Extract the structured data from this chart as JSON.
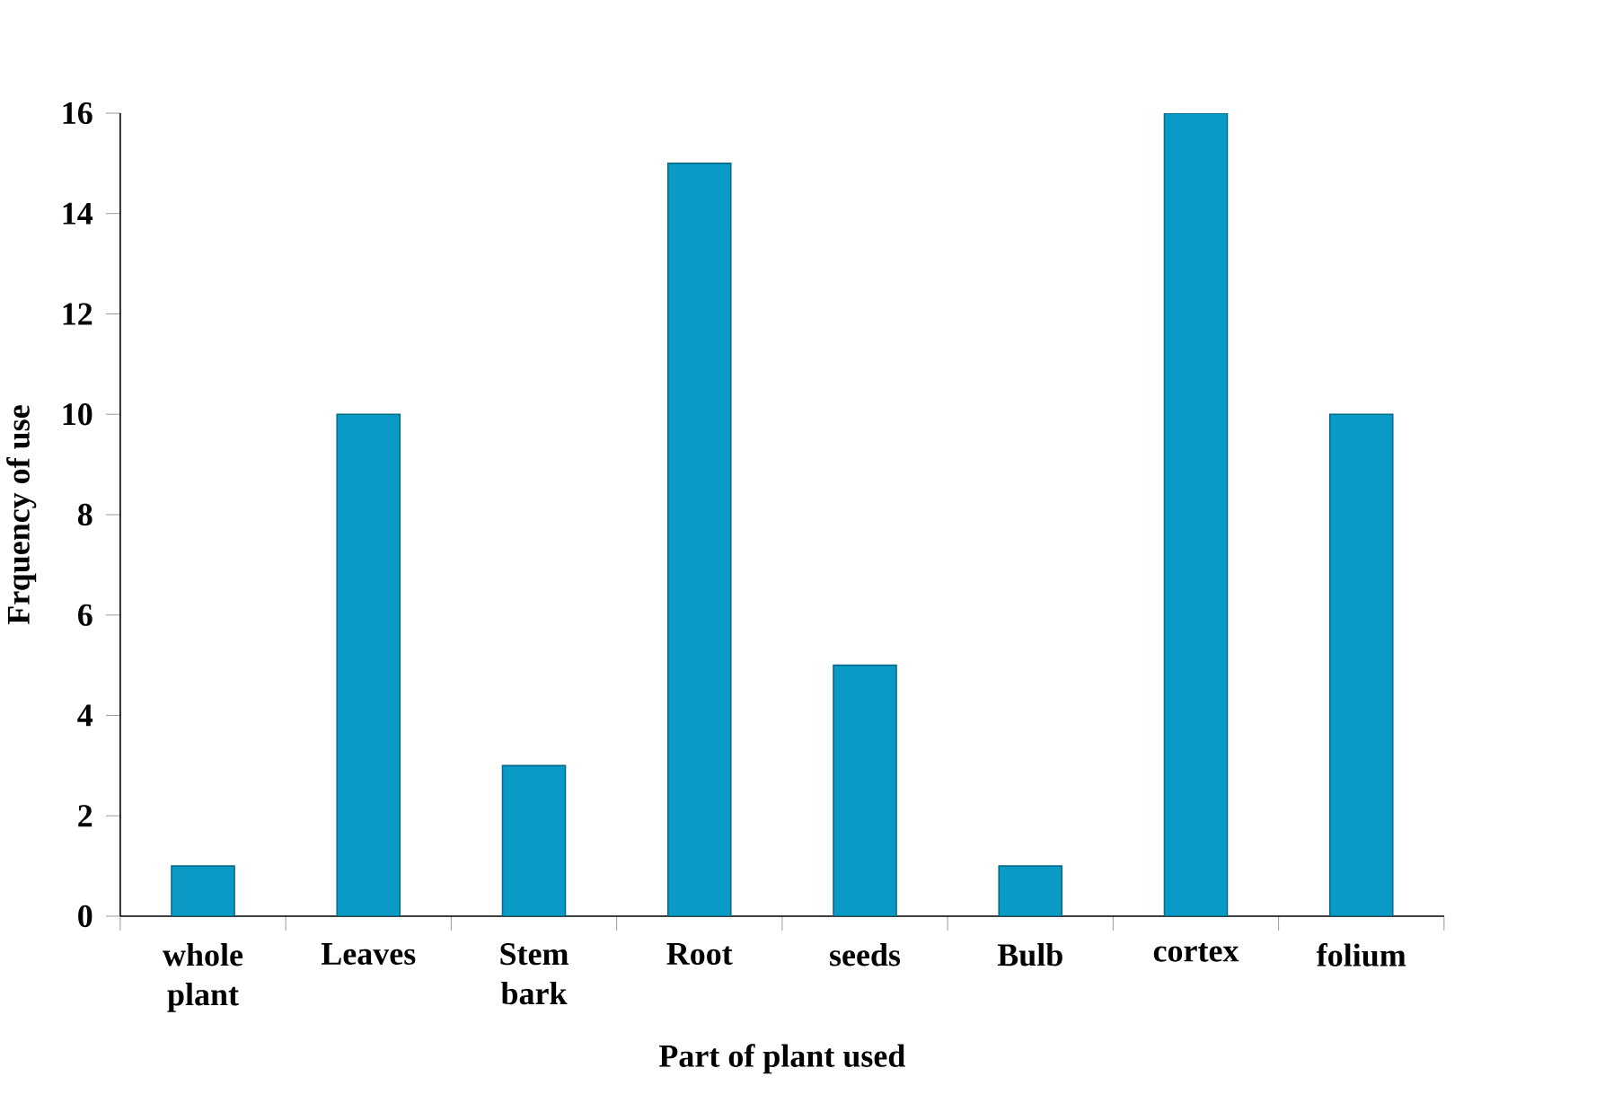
{
  "chart_data": {
    "type": "bar",
    "xlabel": "Part of plant used",
    "ylabel": "Frquency of use",
    "categories": [
      "whole plant",
      "Leaves",
      "Stem bark",
      "Root",
      "seeds",
      "Bulb",
      "cortex",
      "folium"
    ],
    "values": [
      1,
      10,
      3,
      15,
      5,
      1,
      16,
      10
    ],
    "color": "#0a9ac6",
    "ylim": [
      0,
      16
    ],
    "yticks": [
      0,
      2,
      4,
      6,
      8,
      10,
      12,
      14,
      16
    ],
    "grid": false
  }
}
